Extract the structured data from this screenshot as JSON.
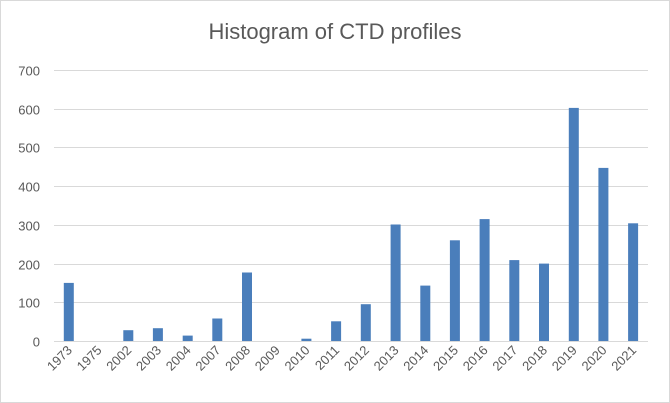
{
  "chart_data": {
    "type": "bar",
    "title": "Histogram of CTD profiles",
    "xlabel": "",
    "ylabel": "",
    "categories": [
      "1973",
      "1975",
      "2002",
      "2003",
      "2004",
      "2007",
      "2008",
      "2009",
      "2010",
      "2011",
      "2012",
      "2013",
      "2014",
      "2015",
      "2016",
      "2017",
      "2018",
      "2019",
      "2020",
      "2021"
    ],
    "values": [
      150,
      0,
      28,
      33,
      14,
      58,
      177,
      0,
      6,
      51,
      95,
      301,
      143,
      260,
      315,
      209,
      200,
      602,
      447,
      304
    ],
    "ylim": [
      0,
      700
    ],
    "yticks": [
      0,
      100,
      200,
      300,
      400,
      500,
      600,
      700
    ],
    "grid": true,
    "legend": "none",
    "colors": {
      "bar": "#4a7ebb",
      "grid": "#d9d9d9",
      "text": "#595959"
    }
  }
}
